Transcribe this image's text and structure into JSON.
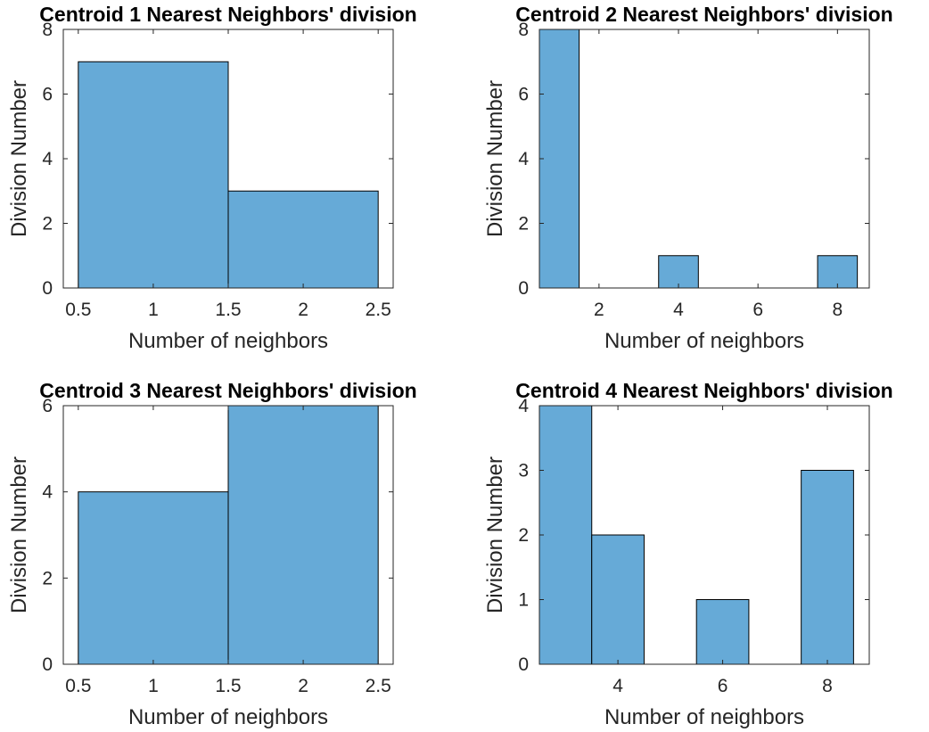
{
  "chart_data": [
    {
      "type": "bar",
      "title": "Centroid 1 Nearest Neighbors' division",
      "xlabel": "Number of neighbors",
      "ylabel": "Division Number",
      "xlim": [
        0.4,
        2.6
      ],
      "ylim": [
        0,
        8
      ],
      "xticks": [
        0.5,
        1,
        1.5,
        2,
        2.5
      ],
      "xtick_labels": [
        "0.5",
        "1",
        "1.5",
        "2",
        "2.5"
      ],
      "yticks": [
        0,
        2,
        4,
        6,
        8
      ],
      "ytick_labels": [
        "0",
        "2",
        "4",
        "6",
        "8"
      ],
      "bin_edges": [
        0.5,
        1.5,
        2.5
      ],
      "values": [
        7,
        3
      ],
      "bar_color": "#66aad7"
    },
    {
      "type": "bar",
      "title": "Centroid 2 Nearest Neighbors' division",
      "xlabel": "Number of neighbors",
      "ylabel": "Division Number",
      "xlim": [
        0.5,
        8.8
      ],
      "ylim": [
        0,
        8
      ],
      "xticks": [
        2,
        4,
        6,
        8
      ],
      "xtick_labels": [
        "2",
        "4",
        "6",
        "8"
      ],
      "yticks": [
        0,
        2,
        4,
        6,
        8
      ],
      "ytick_labels": [
        "0",
        "2",
        "4",
        "6",
        "8"
      ],
      "bin_edges": [
        0.5,
        1.5,
        2.5,
        3.5,
        4.5,
        5.5,
        6.5,
        7.5,
        8.5
      ],
      "values": [
        8,
        0,
        0,
        1,
        0,
        0,
        0,
        1
      ],
      "bar_color": "#66aad7"
    },
    {
      "type": "bar",
      "title": "Centroid 3 Nearest Neighbors' division",
      "xlabel": "Number of neighbors",
      "ylabel": "Division Number",
      "xlim": [
        0.4,
        2.6
      ],
      "ylim": [
        0,
        6
      ],
      "xticks": [
        0.5,
        1,
        1.5,
        2,
        2.5
      ],
      "xtick_labels": [
        "0.5",
        "1",
        "1.5",
        "2",
        "2.5"
      ],
      "yticks": [
        0,
        2,
        4,
        6
      ],
      "ytick_labels": [
        "0",
        "2",
        "4",
        "6"
      ],
      "bin_edges": [
        0.5,
        1.5,
        2.5
      ],
      "values": [
        4,
        6
      ],
      "bar_color": "#66aad7"
    },
    {
      "type": "bar",
      "title": "Centroid 4 Nearest Neighbors' division",
      "xlabel": "Number of neighbors",
      "ylabel": "Division Number",
      "xlim": [
        2.5,
        8.8
      ],
      "ylim": [
        0,
        4
      ],
      "xticks": [
        4,
        6,
        8
      ],
      "xtick_labels": [
        "4",
        "6",
        "8"
      ],
      "yticks": [
        0,
        1,
        2,
        3,
        4
      ],
      "ytick_labels": [
        "0",
        "1",
        "2",
        "3",
        "4"
      ],
      "bin_edges": [
        2.5,
        3.5,
        4.5,
        5.5,
        6.5,
        7.5,
        8.5
      ],
      "values": [
        4,
        2,
        0,
        1,
        0,
        3
      ],
      "bar_color": "#66aad7"
    }
  ]
}
